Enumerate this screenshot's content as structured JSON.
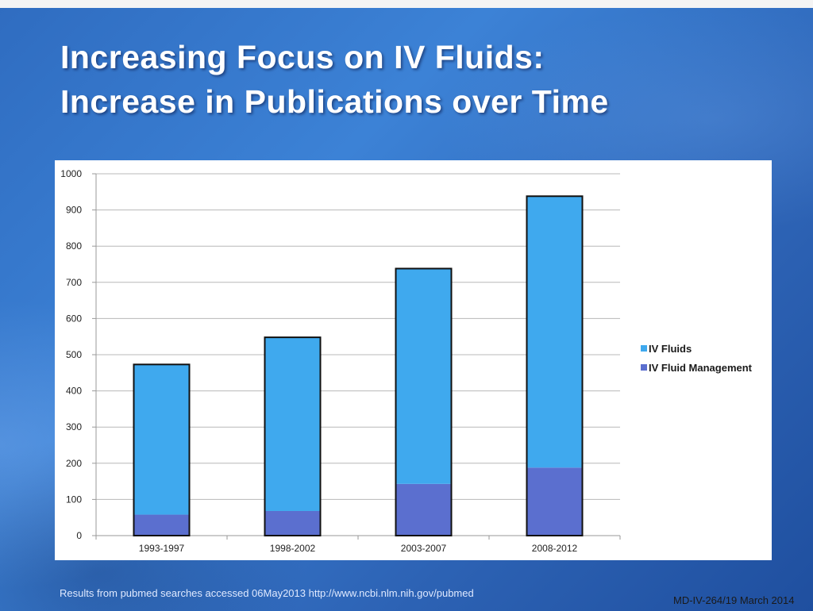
{
  "slide": {
    "title_line1": "Increasing Focus on IV Fluids:",
    "title_line2": "Increase in Publications over Time",
    "footer_note": "Results from pubmed searches accessed 06May2013 http://www.ncbi.nlm.nih.gov/pubmed",
    "footer_code": "MD-IV-264/19 March 2014"
  },
  "chart_data": {
    "type": "bar",
    "stacked": true,
    "categories": [
      "1993-1997",
      "1998-2002",
      "2003-2007",
      "2008-2012"
    ],
    "series": [
      {
        "name": "IV Fluid Management",
        "values": [
          58,
          68,
          143,
          188
        ],
        "color": "#5b6fcf"
      },
      {
        "name": "IV Fluids",
        "values": [
          415,
          480,
          595,
          750
        ],
        "color": "#3fa9ee"
      }
    ],
    "ylim": [
      0,
      1000
    ],
    "yticks": [
      "0",
      "100",
      "200",
      "300",
      "400",
      "500",
      "600",
      "700",
      "800",
      "900",
      "1000"
    ],
    "grid": true,
    "legend_position": "right",
    "legend_order": [
      "IV Fluids",
      "IV Fluid Management"
    ]
  }
}
